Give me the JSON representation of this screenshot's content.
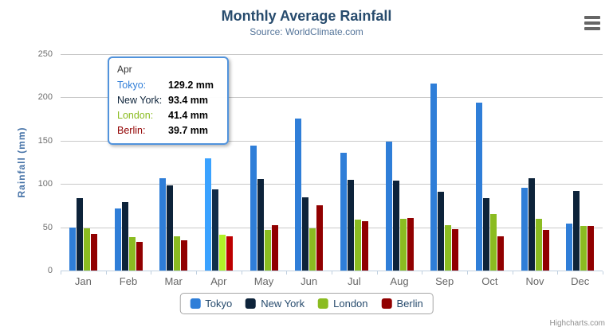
{
  "credits": "Highcharts.com",
  "chart_data": {
    "type": "bar",
    "title": "Monthly Average Rainfall",
    "subtitle": "Source: WorldClimate.com",
    "xlabel": "",
    "ylabel": "Rainfall (mm)",
    "ylim": [
      0,
      250
    ],
    "ytick_step": 50,
    "grid": true,
    "legend_position": "bottom-center",
    "categories": [
      "Jan",
      "Feb",
      "Mar",
      "Apr",
      "May",
      "Jun",
      "Jul",
      "Aug",
      "Sep",
      "Oct",
      "Nov",
      "Dec"
    ],
    "series": [
      {
        "name": "Tokyo",
        "color": "#2f7ed8",
        "values": [
          49.9,
          71.5,
          106.4,
          129.2,
          144.0,
          176.0,
          135.6,
          148.5,
          216.4,
          194.1,
          95.6,
          54.4
        ]
      },
      {
        "name": "New York",
        "color": "#0d233a",
        "values": [
          83.6,
          78.8,
          98.5,
          93.4,
          106.0,
          84.5,
          105.0,
          104.3,
          91.2,
          83.5,
          106.6,
          92.3
        ]
      },
      {
        "name": "London",
        "color": "#8bbc21",
        "values": [
          48.9,
          38.8,
          39.3,
          41.4,
          47.0,
          48.3,
          59.0,
          59.6,
          52.4,
          65.2,
          59.3,
          51.2
        ]
      },
      {
        "name": "Berlin",
        "color": "#910000",
        "values": [
          42.4,
          33.2,
          34.5,
          39.7,
          52.6,
          75.5,
          57.4,
          60.4,
          47.6,
          39.1,
          46.8,
          51.1
        ]
      }
    ],
    "hovered_category": "Apr"
  },
  "tooltip": {
    "header": "Apr",
    "border_color": "#5193dc",
    "rows": [
      {
        "label": "Tokyo:",
        "value": "129.2 mm",
        "color": "#2f7ed8"
      },
      {
        "label": "New York:",
        "value": "93.4 mm",
        "color": "#0d233a"
      },
      {
        "label": "London:",
        "value": "41.4 mm",
        "color": "#8bbc21"
      },
      {
        "label": "Berlin:",
        "value": "39.7 mm",
        "color": "#910000"
      }
    ]
  },
  "colors": {
    "title": "#274b6d",
    "subtitle": "#55759a",
    "axis_title": "#4572a7",
    "axis_labels": "#666666",
    "gridline": "#c9c9c9",
    "axis_line": "#c0d0e0",
    "legend_text": "#274b6d",
    "credits": "#909090"
  }
}
